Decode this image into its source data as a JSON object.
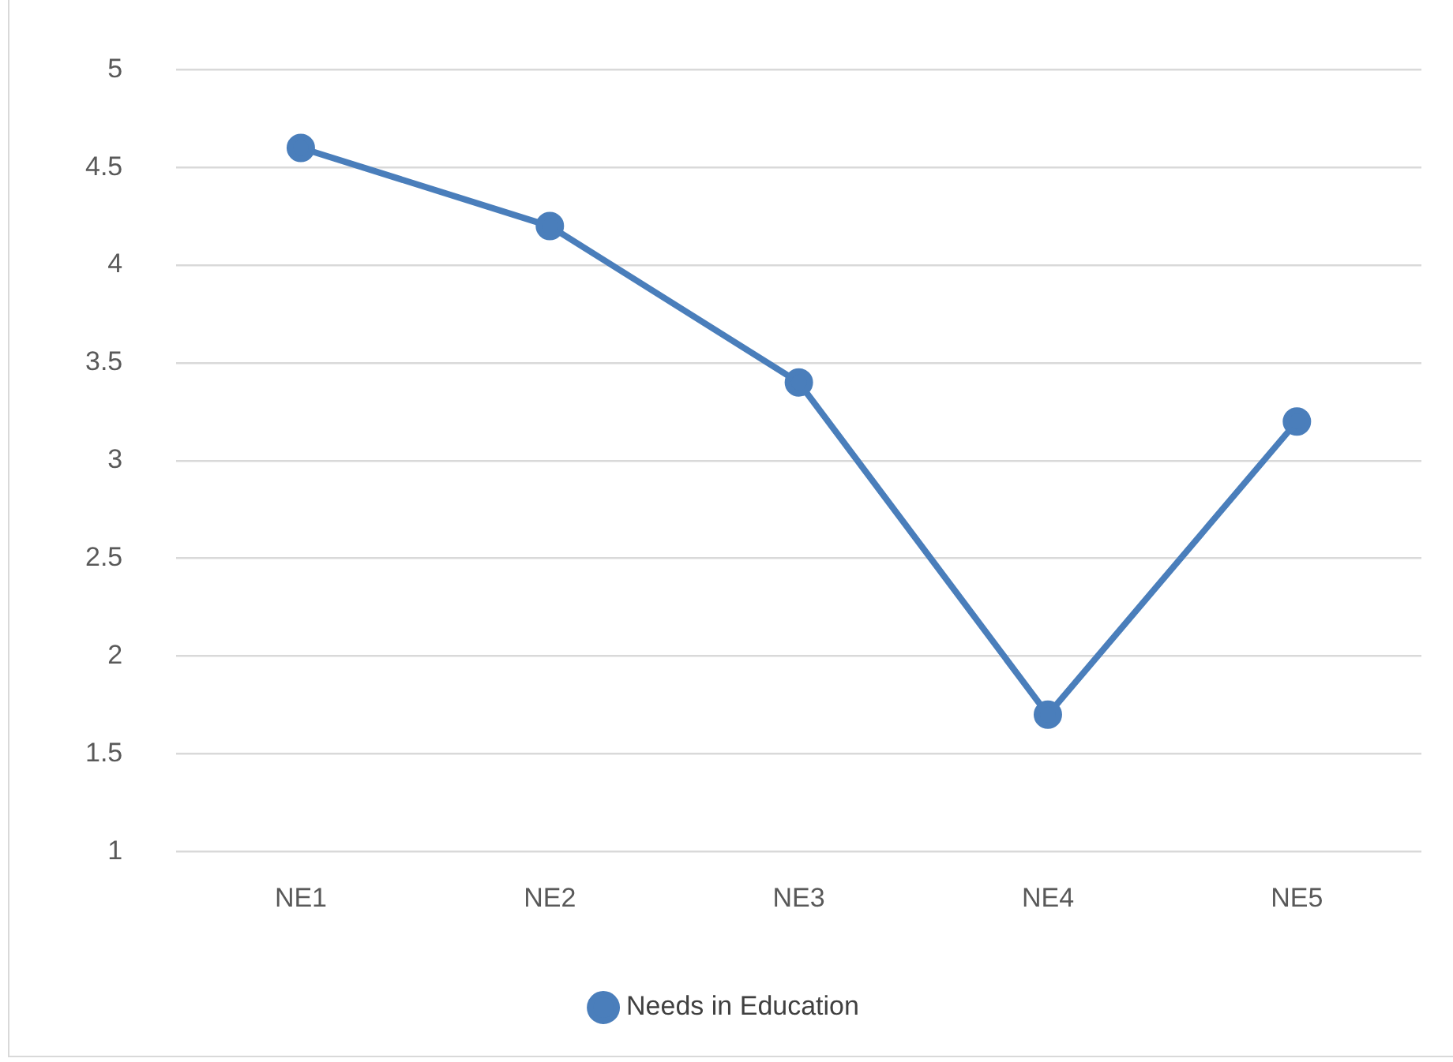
{
  "chart_data": {
    "type": "line",
    "categories": [
      "NE1",
      "NE2",
      "NE3",
      "NE4",
      "NE5"
    ],
    "series": [
      {
        "name": "Needs in Education",
        "color": "#4a7ebb",
        "values": [
          4.6,
          4.2,
          3.4,
          1.7,
          3.2
        ]
      }
    ],
    "ylim": [
      1,
      5
    ],
    "yticks": [
      1,
      1.5,
      2,
      2.5,
      3,
      3.5,
      4,
      4.5,
      5
    ],
    "grid": "y",
    "legend": "bottom",
    "marker": "circle",
    "line_style": "solid"
  }
}
